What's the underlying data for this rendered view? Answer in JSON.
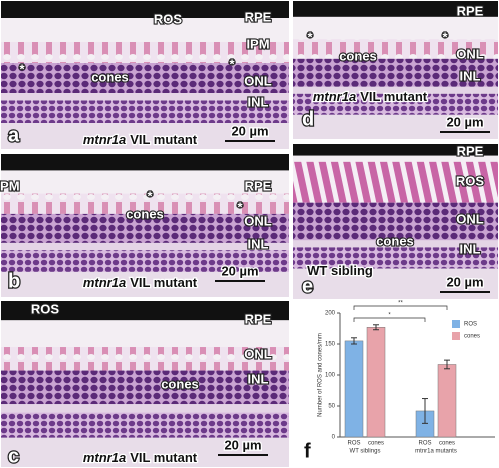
{
  "panels": [
    {
      "letter": "a",
      "labels": [
        "ROS",
        "RPE",
        "IPM",
        "*",
        "*",
        "cones",
        "ONL",
        "INL"
      ],
      "caption": {
        "gene": "mtnr1a",
        "text": "VIL mutant"
      },
      "scale": "20 µm"
    },
    {
      "letter": "b",
      "labels": [
        "IPM",
        "RPE",
        "*",
        "*",
        "cones",
        "ONL",
        "INL"
      ],
      "caption": {
        "gene": "mtnr1a",
        "text": "VIL mutant"
      },
      "scale": "20 µm"
    },
    {
      "letter": "c",
      "labels": [
        "ROS",
        "RPE",
        "cones",
        "ONL",
        "INL"
      ],
      "caption": {
        "gene": "mtnr1a",
        "text": "VIL mutant"
      },
      "scale": "20 µm"
    },
    {
      "letter": "d",
      "labels": [
        "RPE",
        "*",
        "*",
        "cones",
        "ONL",
        "INL"
      ],
      "caption": {
        "gene": "mtnr1a",
        "text": "VIL mutant"
      },
      "scale": "20 µm"
    },
    {
      "letter": "e",
      "labels": [
        "RPE",
        "ROS",
        "cones",
        "ONL",
        "INL"
      ],
      "caption": {
        "text": "WT sibling"
      },
      "scale": "20 µm"
    }
  ],
  "chart_data": {
    "type": "bar",
    "letter": "f",
    "y_label": "Number of ROS and cones/mm",
    "categories": [
      "WT siblings",
      "mtnr1a mutants"
    ],
    "series": [
      {
        "name": "ROS",
        "color": "#7fb2e5",
        "values": [
          155,
          42
        ],
        "errors": [
          5,
          20
        ]
      },
      {
        "name": "cones",
        "color": "#e8a3aa",
        "values": [
          177,
          117
        ],
        "errors": [
          4,
          7
        ]
      }
    ],
    "ylim": [
      0,
      200
    ],
    "yticks": [
      0,
      50,
      100,
      150,
      200
    ],
    "annotations": [
      "*",
      "**"
    ],
    "legend": "upper-right"
  }
}
